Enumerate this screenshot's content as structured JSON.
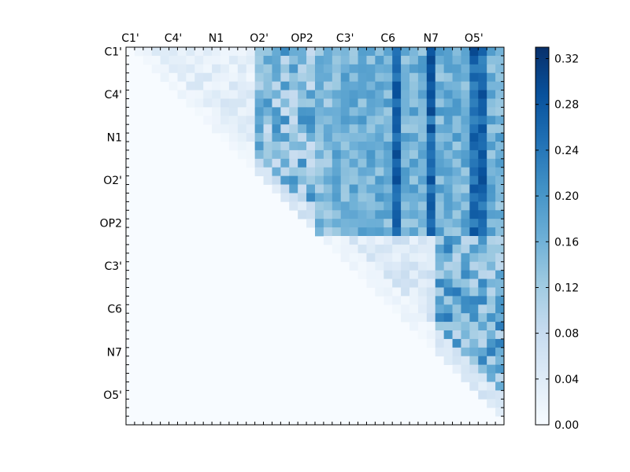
{
  "chart_data": {
    "type": "heatmap",
    "title": "",
    "xlabel": "",
    "ylabel": "",
    "n": 44,
    "tick_labels": [
      "C1'",
      "C4'",
      "N1",
      "O2'",
      "OP2",
      "C3'",
      "C6",
      "N7",
      "O5'"
    ],
    "tick_positions": [
      0,
      5,
      10,
      15,
      20,
      25,
      30,
      35,
      40
    ],
    "colorbar": {
      "colormap": "Blues",
      "vmin": 0.0,
      "vmax": 0.33,
      "ticks": [
        "0.00",
        "0.04",
        "0.08",
        "0.12",
        "0.16",
        "0.20",
        "0.24",
        "0.28",
        "0.32"
      ]
    },
    "matrix_description": "upper triangular 44x44 matrix; zero on and below the diagonal",
    "blocks": [
      {
        "rows": [
          0,
          21
        ],
        "cols": [
          22,
          43
        ],
        "min": 0.12,
        "max": 0.3
      },
      {
        "rows": [
          0,
          21
        ],
        "cols": [
          0,
          21
        ],
        "min": 0.0,
        "max": 0.22
      },
      {
        "rows": [
          22,
          43
        ],
        "cols": [
          22,
          43
        ],
        "min": 0.0,
        "max": 0.24
      }
    ],
    "high_columns": [
      31,
      35,
      40,
      41
    ]
  }
}
